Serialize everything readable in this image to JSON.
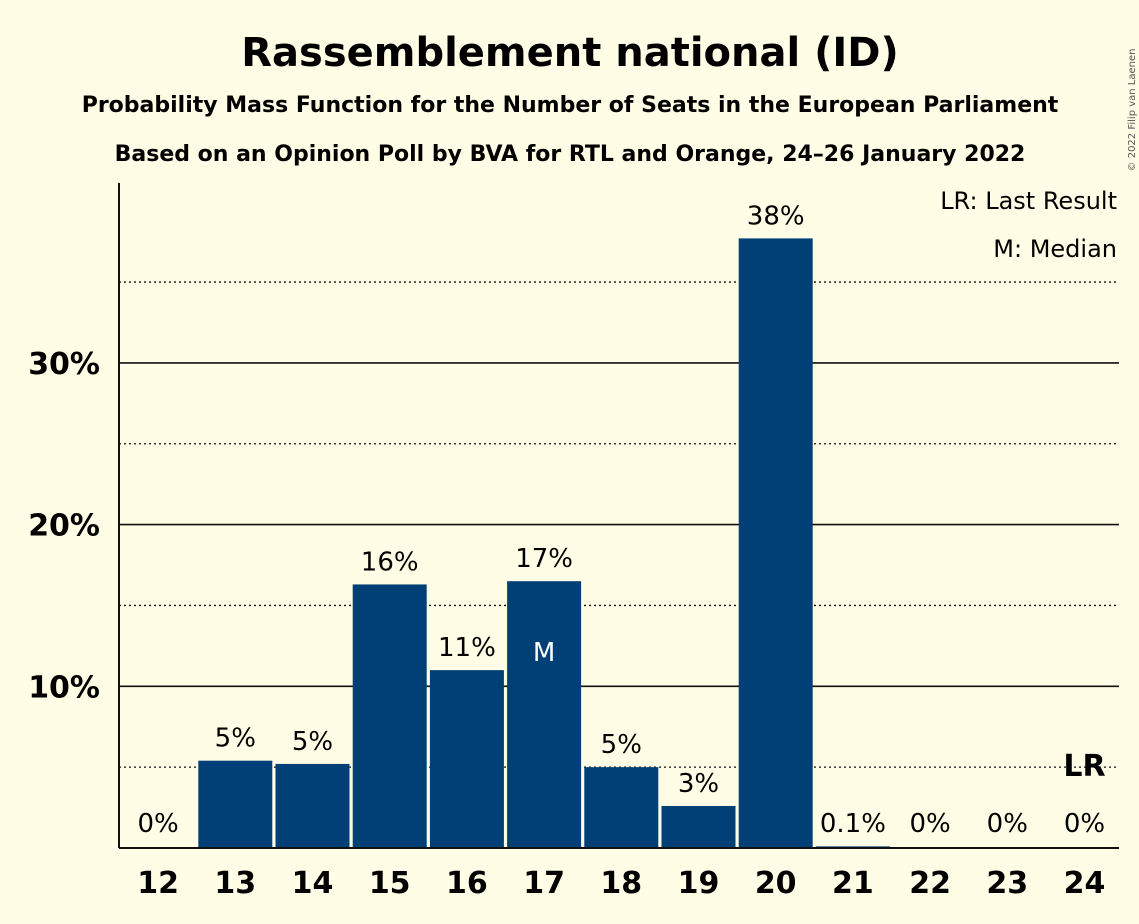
{
  "chart_data": {
    "type": "bar",
    "title": "Rassemblement national (ID)",
    "subtitle1": "Probability Mass Function for the Number of Seats in the European Parliament",
    "subtitle2": "Based on an Opinion Poll by BVA for RTL and Orange, 24–26 January 2022",
    "categories": [
      "12",
      "13",
      "14",
      "15",
      "16",
      "17",
      "18",
      "19",
      "20",
      "21",
      "22",
      "23",
      "24"
    ],
    "values": [
      0,
      5.4,
      5.2,
      16.3,
      11.0,
      16.5,
      5.0,
      2.6,
      37.7,
      0.1,
      0,
      0,
      0
    ],
    "value_labels": [
      "0%",
      "5%",
      "5%",
      "16%",
      "11%",
      "17%",
      "5%",
      "3%",
      "38%",
      "0.1%",
      "0%",
      "0%",
      "0%"
    ],
    "ylim": [
      0,
      41
    ],
    "y_ticks": [
      10,
      20,
      30
    ],
    "y_tick_labels": [
      "10%",
      "20%",
      "30%"
    ],
    "minor_grid": [
      5,
      15,
      25,
      35
    ],
    "median_category": "17",
    "median_marker": "M",
    "last_result_category": "24",
    "last_result_marker": "LR",
    "legend": {
      "lr": "LR: Last Result",
      "m": "M: Median",
      "placement": "top-right"
    },
    "copyright": "© 2022 Filip van Laenen",
    "colors": {
      "bar": "#004077",
      "background": "#fffde5",
      "text": "#111111"
    }
  }
}
